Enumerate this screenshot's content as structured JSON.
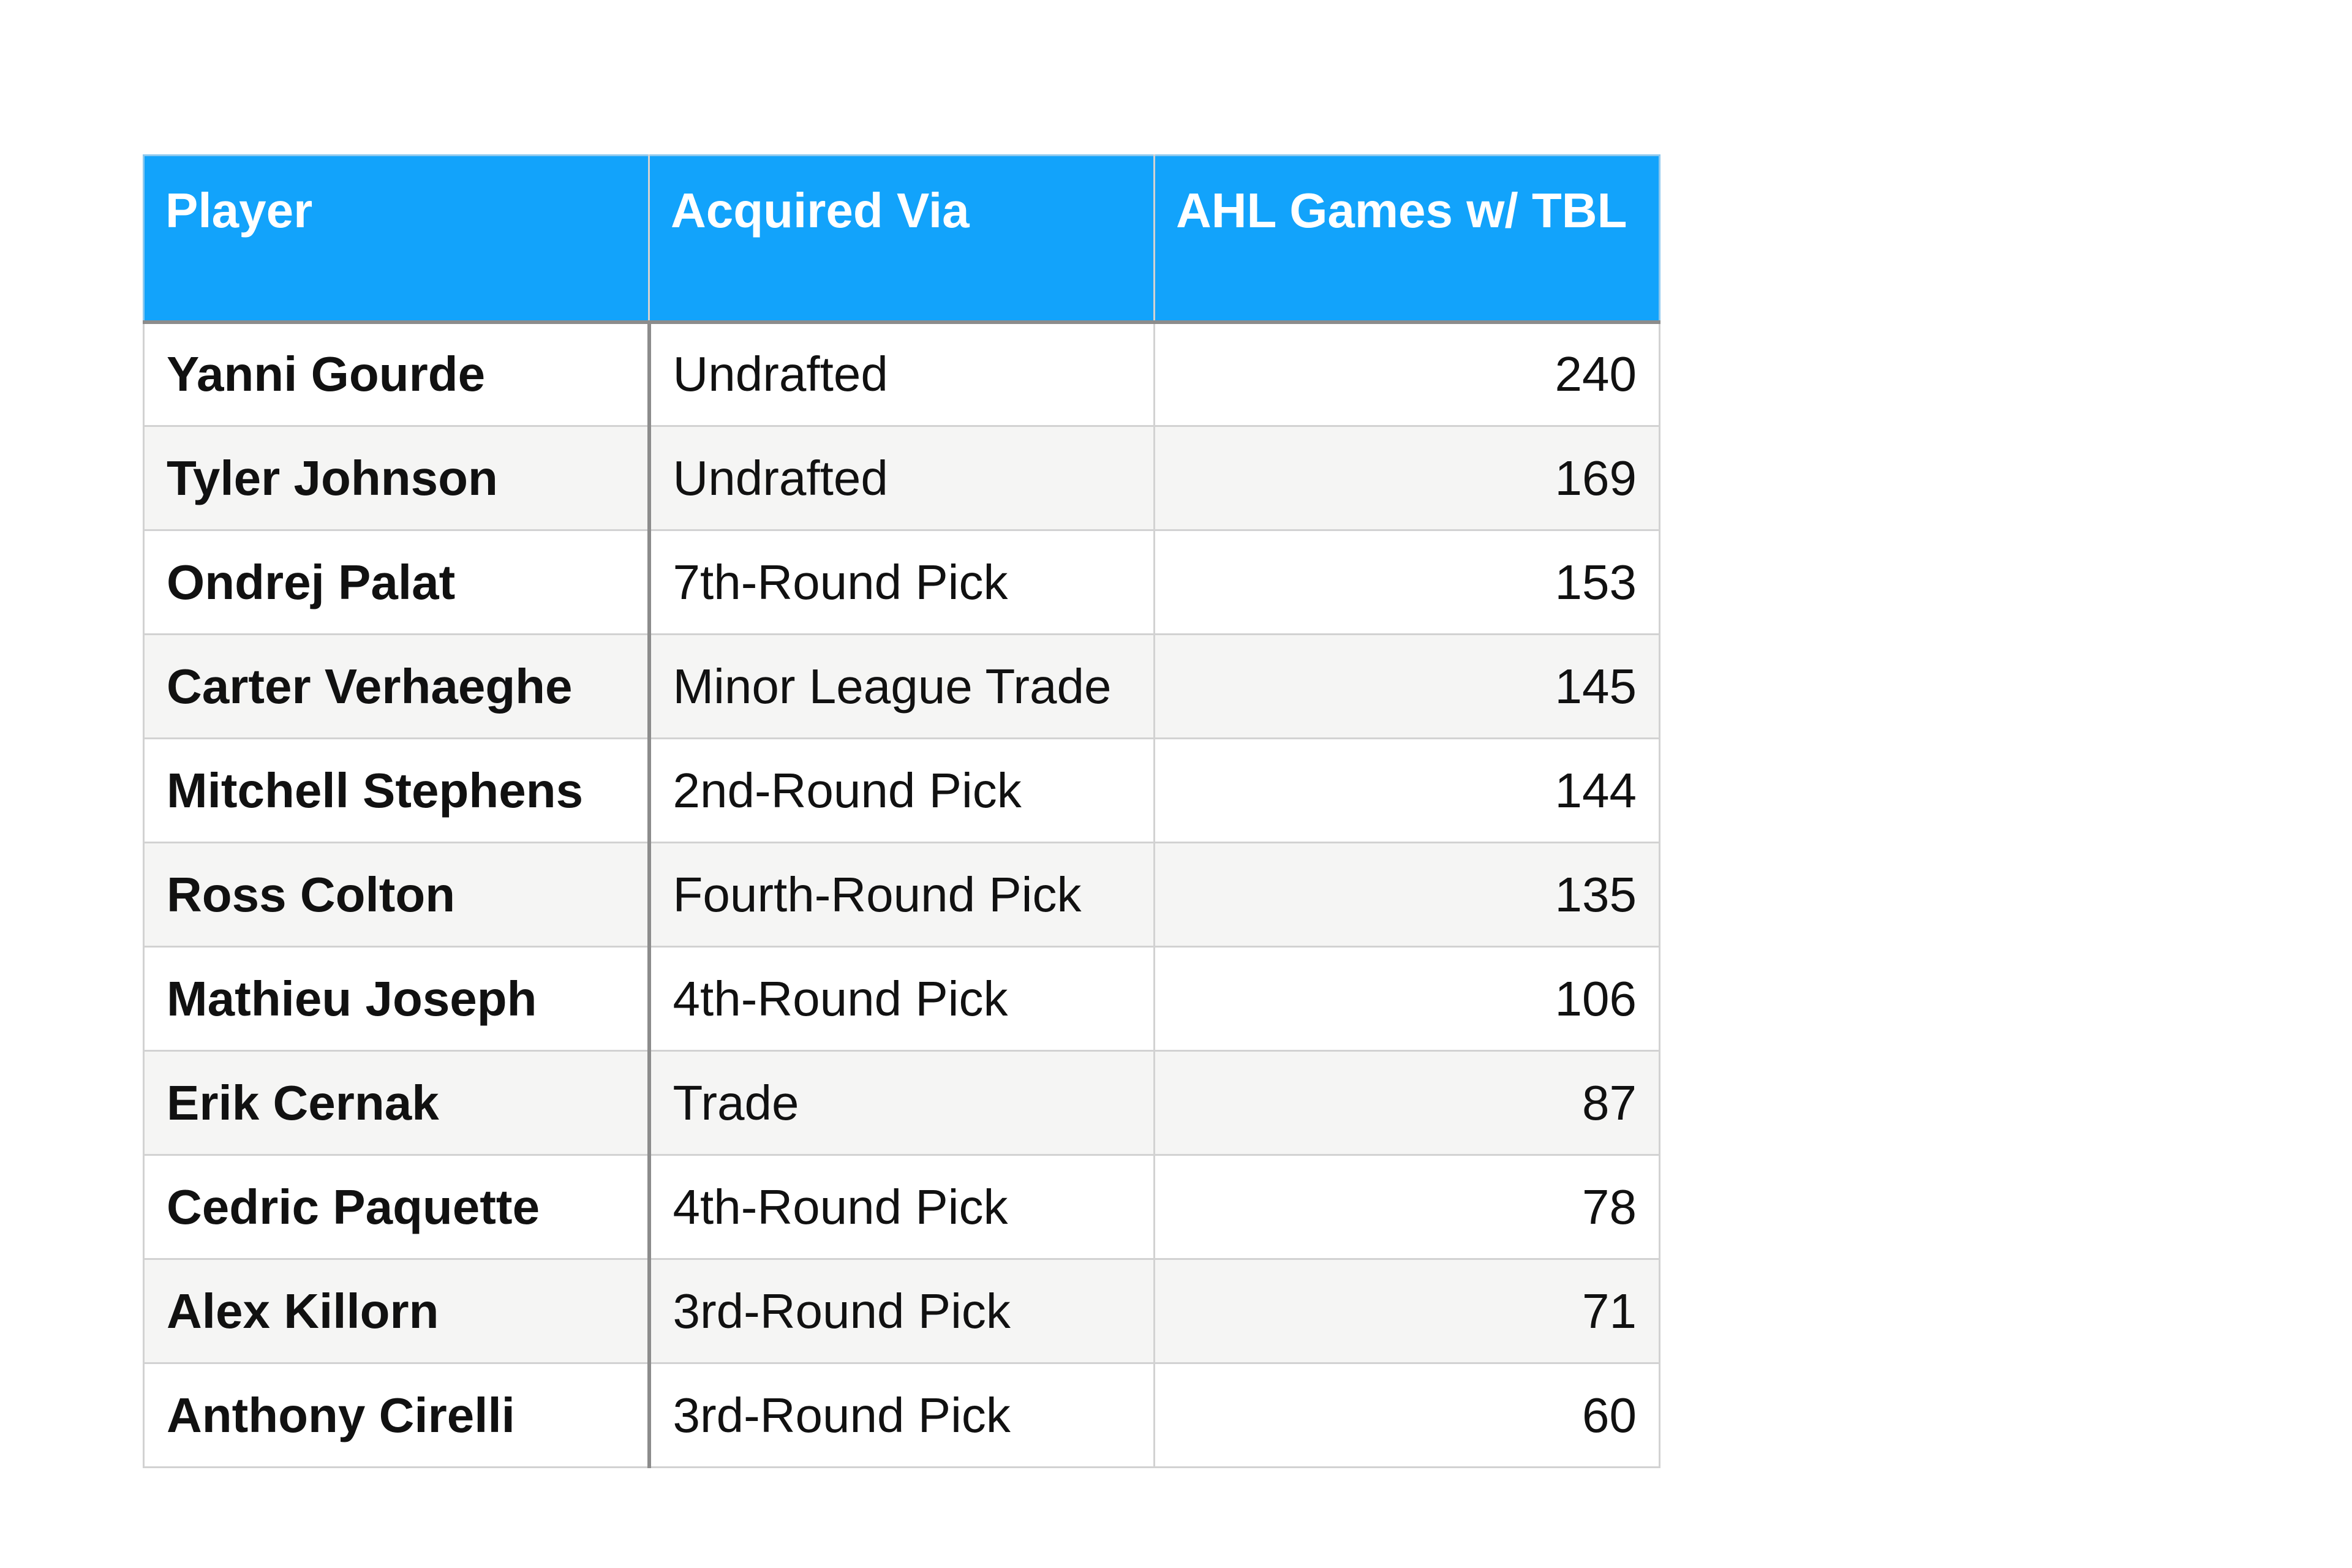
{
  "chart_data": {
    "type": "table",
    "columns": [
      "Player",
      "Acquired Via",
      "AHL Games w/ TBL"
    ],
    "rows": [
      {
        "player": "Yanni Gourde",
        "acquired_via": "Undrafted",
        "ahl_games": "240"
      },
      {
        "player": "Tyler Johnson",
        "acquired_via": "Undrafted",
        "ahl_games": "169"
      },
      {
        "player": "Ondrej Palat",
        "acquired_via": "7th-Round Pick",
        "ahl_games": "153"
      },
      {
        "player": "Carter Verhaeghe",
        "acquired_via": "Minor League Trade",
        "ahl_games": "145"
      },
      {
        "player": "Mitchell Stephens",
        "acquired_via": "2nd-Round Pick",
        "ahl_games": "144"
      },
      {
        "player": "Ross Colton",
        "acquired_via": "Fourth-Round Pick",
        "ahl_games": "135"
      },
      {
        "player": "Mathieu Joseph",
        "acquired_via": "4th-Round Pick",
        "ahl_games": "106"
      },
      {
        "player": "Erik Cernak",
        "acquired_via": "Trade",
        "ahl_games": "87"
      },
      {
        "player": "Cedric Paquette",
        "acquired_via": "4th-Round Pick",
        "ahl_games": "78"
      },
      {
        "player": "Alex Killorn",
        "acquired_via": "3rd-Round Pick",
        "ahl_games": "71"
      },
      {
        "player": "Anthony Cirelli",
        "acquired_via": "3rd-Round Pick",
        "ahl_games": "60"
      }
    ],
    "header_color": "#12a3fb",
    "header_text_color": "#ffffff",
    "alt_row_color": "#f5f5f4"
  }
}
